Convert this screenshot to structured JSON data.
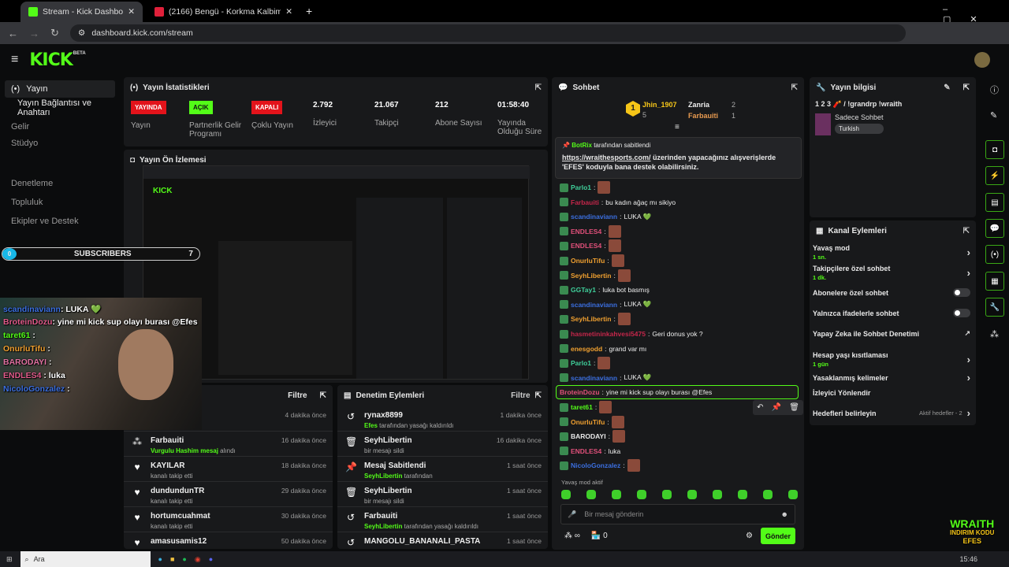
{
  "browser": {
    "tabs": [
      {
        "title": "Stream - Kick Dashboard",
        "active": true
      },
      {
        "title": "(2166) Bengü - Korkma Kalbim"
      }
    ],
    "url": "dashboard.kick.com/stream"
  },
  "brand": {
    "logo": "KICK",
    "beta": "BETA",
    "accent": "#53fc18"
  },
  "sidebar": {
    "items": [
      {
        "label": "Yayın",
        "icon": "broadcast-icon"
      },
      {
        "label": "Yayın Bağlantısı ve Anahtarı"
      },
      {
        "label": "Gelir"
      },
      {
        "label": "Stüdyo"
      },
      {
        "label": "Denetleme"
      },
      {
        "label": "Topluluk"
      },
      {
        "label": "Ekipler ve Destek"
      }
    ]
  },
  "overlay": {
    "chat": [
      {
        "user": "scandinaviann",
        "text": ": LUKA 💚",
        "color": "#3b6fe0"
      },
      {
        "user": "BroteinDozu",
        "text": ": yine mi kick sup olayı burası @Efes",
        "color": "#e05a8a"
      },
      {
        "user": "taret61",
        "text": " : ",
        "color": "#53fc18"
      },
      {
        "user": "OnurluTifu",
        "text": " : ",
        "color": "#f0a030"
      },
      {
        "user": "BARODAYI",
        "text": " : ",
        "color": "#e070a0"
      },
      {
        "user": "ENDLES4",
        "text": " : luka",
        "color": "#e05a8a"
      },
      {
        "user": "NicoloGonzalez",
        "text": " : ",
        "color": "#3b6fe0"
      }
    ],
    "sub_goal": {
      "current": "0",
      "label": "SUBSCRIBERS",
      "target": "7"
    },
    "sponsor": {
      "line1": "WRAITH",
      "line2": "INDIRIM KODU",
      "line3": "EFES"
    }
  },
  "stats": {
    "title": "Yayın İstatistikleri",
    "items": [
      {
        "badge": "YAYINDA",
        "badge_color": "#e3131b",
        "label": "Yayın"
      },
      {
        "badge": "AÇIK",
        "badge_color": "#53fc18",
        "label": "Partnerlik Gelir Programı"
      },
      {
        "badge": "KAPALI",
        "badge_color": "#e3131b",
        "label": "Çoklu Yayın"
      },
      {
        "value": "2.792",
        "label": "İzleyici"
      },
      {
        "value": "21.067",
        "label": "Takipçi"
      },
      {
        "value": "212",
        "label": "Abone Sayısı"
      },
      {
        "value": "01:58:40",
        "label": "Yayında Olduğu Süre"
      }
    ]
  },
  "preview": {
    "title": "Yayın Ön İzlemesi"
  },
  "events": {
    "filter": "Filtre",
    "items": [
      {
        "name": "",
        "detail": "",
        "time": "4 dakika önce"
      },
      {
        "icon": "gift-icon",
        "name": "Farbauiti",
        "highlight": "Vurgulu Hashim mesaj",
        "detail": " alındı",
        "time": "16 dakika önce"
      },
      {
        "icon": "heart-icon",
        "name": "KAYILAR",
        "detail": "kanalı takip etti",
        "time": "18 dakika önce"
      },
      {
        "icon": "heart-icon",
        "name": "dundundunTR",
        "detail": "kanalı takip etti",
        "time": "29 dakika önce"
      },
      {
        "icon": "heart-icon",
        "name": "hortumcuahmat",
        "detail": "kanalı takip etti",
        "time": "30 dakika önce"
      },
      {
        "icon": "heart-icon",
        "name": "amasusamis12",
        "detail": "",
        "time": "50 dakika önce"
      }
    ]
  },
  "moderation": {
    "title": "Denetim Eylemleri",
    "filter": "Filtre",
    "items": [
      {
        "icon": "unban-icon",
        "name": "rynax8899",
        "highlight": "Efes",
        "detail": " tarafından yasağı kaldırıldı",
        "time": "1 dakika önce"
      },
      {
        "icon": "trash-icon",
        "name": "SeyhLibertin",
        "detail": "bir mesajı sildi",
        "time": "16 dakika önce"
      },
      {
        "icon": "pin-icon",
        "name": "Mesaj Sabitlendi",
        "highlight": "SeyhLibertin",
        "detail": " tarafından",
        "time": "1 saat önce"
      },
      {
        "icon": "trash-icon",
        "name": "SeyhLibertin",
        "detail": "bir mesajı sildi",
        "time": "1 saat önce"
      },
      {
        "icon": "unban-icon",
        "name": "Farbauiti",
        "highlight": "SeyhLibertin",
        "detail": " tarafından yasağı kaldırıldı",
        "time": "1 saat önce"
      },
      {
        "icon": "unban-icon",
        "name": "MANGOLU_BANANALI_PASTA",
        "detail": "",
        "time": "1 saat önce"
      }
    ]
  },
  "chat": {
    "title": "Sohbet",
    "leaderboard": [
      {
        "rank": "1",
        "user": "Jhin_1907",
        "count": "5"
      },
      {
        "rank": "2",
        "user": "Zanria",
        "count": "2"
      },
      {
        "rank": "3",
        "user": "Farbauiti",
        "count": "1"
      }
    ],
    "pinned": {
      "by_user": "BotRix",
      "by_text": " tarafından sabitlendi",
      "link": "https://wraithesports.com/",
      "text": " üzerinden yapacağınız alışverişlerde 'EFES' koduyla bana destek olabilirsiniz."
    },
    "messages": [
      {
        "user": "Parlo1",
        "color": "#3fcf9a",
        "text": "",
        "emote": true
      },
      {
        "user": "Farbauiti",
        "color": "#c4264a",
        "text": "bu kadın ağaç mı sikiyo"
      },
      {
        "user": "scandinaviann",
        "color": "#3b6fe0",
        "text": "LUKA 💚"
      },
      {
        "user": "ENDLES4",
        "color": "#e0507a",
        "text": "",
        "emote": true
      },
      {
        "user": "ENDLES4",
        "color": "#e0507a",
        "text": "",
        "emote": true
      },
      {
        "user": "OnurluTifu",
        "color": "#f0a030",
        "text": "",
        "emote": true
      },
      {
        "user": "SeyhLibertin",
        "color": "#f0a030",
        "text": "",
        "emote": true
      },
      {
        "user": "GGTay1",
        "color": "#3fcf9a",
        "text": "luka bot basmış"
      },
      {
        "user": "scandinaviann",
        "color": "#3b6fe0",
        "text": "LUKA 💚"
      },
      {
        "user": "SeyhLibertin",
        "color": "#f0a030",
        "text": "",
        "emote": true
      },
      {
        "user": "hasmetininkahvesi5475",
        "color": "#c4264a",
        "text": "Geri donus yok ?"
      },
      {
        "user": "enesgodd",
        "color": "#f0a030",
        "text": "grand var mı"
      },
      {
        "user": "Parlo1",
        "color": "#3fcf9a",
        "text": "",
        "emote": true
      },
      {
        "user": "scandinaviann",
        "color": "#3b6fe0",
        "text": "LUKA 💚"
      },
      {
        "user": "BroteinDozu",
        "color": "#e0507a",
        "text": "yine mi kick sup olayı burası @Efes",
        "highlighted": true
      },
      {
        "user": "taret61",
        "color": "#53fc18",
        "text": "",
        "emote": true
      },
      {
        "user": "OnurluTifu",
        "color": "#f0a030",
        "text": "",
        "emote": true
      },
      {
        "user": "BARODAYI",
        "color": "#e8e8e8",
        "text": "",
        "emote": true
      },
      {
        "user": "ENDLES4",
        "color": "#e0507a",
        "text": "luka"
      },
      {
        "user": "NicoloGonzalez",
        "color": "#3b6fe0",
        "text": "",
        "emote": true
      }
    ],
    "slow_mode": "Yavaş mod aktif",
    "input_placeholder": "Bir mesaj gönderin",
    "points": "∞",
    "store_count": "0",
    "send": "Gönder"
  },
  "stream_info": {
    "title": "Yayın bilgisi",
    "stream_title": "1 2 3 🧨 / !grandrp !wraith",
    "category": "Sadece Sohbet",
    "language": "Turkish"
  },
  "channel_actions": {
    "title": "Kanal Eylemleri",
    "items": [
      {
        "label": "Yavaş mod",
        "value": "1 sn.",
        "control": "chevron"
      },
      {
        "label": "Takipçilere özel sohbet",
        "value": "1 dk.",
        "control": "chevron"
      },
      {
        "label": "Abonelere özel sohbet",
        "control": "toggle",
        "on": false
      },
      {
        "label": "Yalnızca ifadelerle sohbet",
        "control": "toggle",
        "on": false
      },
      {
        "label": "Yapay Zeka ile Sohbet Denetimi",
        "control": "external"
      },
      {
        "label": "Hesap yaşı kısıtlaması",
        "value": "1 gün",
        "control": "chevron"
      },
      {
        "label": "Yasaklanmış kelimeler",
        "control": "chevron"
      },
      {
        "label": "İzleyici Yönlendir",
        "control": "none"
      },
      {
        "label": "Hedefleri belirleyin",
        "status": "Aktif hedefler - 2",
        "control": "chevron"
      }
    ]
  },
  "taskbar": {
    "search": "Ara",
    "time": "15:46"
  }
}
